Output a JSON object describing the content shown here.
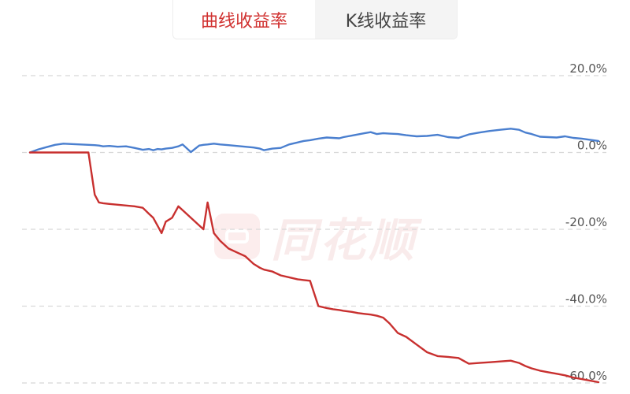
{
  "tabs": [
    {
      "label": "曲线收益率",
      "active": true
    },
    {
      "label": "K线收益率",
      "active": false
    }
  ],
  "watermark": {
    "text": "同花顺"
  },
  "colors": {
    "series_a": "#4a7fcf",
    "series_b": "#c8302f",
    "grid": "#d8d8d8",
    "tick": "#555555"
  },
  "chart_data": {
    "type": "line",
    "title": "",
    "xlabel": "",
    "ylabel": "",
    "ylim": [
      -60,
      20
    ],
    "yticks": [
      20,
      0,
      -20,
      -40,
      -60
    ],
    "ytick_labels": [
      "20.0%",
      "0.0%",
      "-20.0%",
      "-40.0%",
      "-60.0%"
    ],
    "grid": true,
    "x": [
      0,
      4,
      8,
      12,
      16,
      20,
      24,
      28,
      31,
      33,
      35,
      38,
      42,
      46,
      50,
      54,
      57,
      59,
      61,
      63,
      65,
      68,
      71,
      73,
      77,
      81,
      83,
      85,
      88,
      91,
      95,
      99,
      103,
      107,
      110,
      112,
      116,
      120,
      124,
      128,
      131,
      134,
      138,
      142,
      145,
      148,
      150,
      154,
      157,
      160,
      163,
      166,
      169,
      172,
      176,
      180,
      185,
      190,
      195,
      200,
      205,
      210,
      215,
      220,
      225,
      230,
      234,
      237,
      240,
      244,
      248,
      252,
      256,
      260,
      264,
      268,
      272
    ],
    "series": [
      {
        "values": [
          0,
          0.8,
          1.4,
          2.0,
          2.3,
          2.2,
          2.1,
          2.0,
          1.9,
          1.8,
          1.6,
          1.7,
          1.5,
          1.6,
          1.2,
          0.7,
          0.9,
          0.6,
          0.9,
          0.8,
          1.0,
          1.2,
          1.6,
          2.1,
          0.1,
          1.8,
          2.0,
          2.1,
          2.3,
          2.1,
          1.9,
          1.7,
          1.5,
          1.3,
          1.0,
          0.6,
          1.0,
          1.2,
          2.1,
          2.6,
          3.0,
          3.2,
          3.6,
          3.9,
          3.8,
          3.7,
          4.0,
          4.4,
          4.7,
          5.0,
          5.3,
          4.8,
          5.0,
          4.9,
          4.8,
          4.5,
          4.2,
          4.3,
          4.6,
          4.0,
          3.8,
          4.7,
          5.2,
          5.6,
          5.9,
          6.2,
          5.9,
          5.2,
          4.8,
          4.1,
          4.0,
          3.9,
          4.2,
          3.8,
          3.6,
          3.3,
          3.0
        ]
      },
      {
        "values": [
          0,
          0,
          0,
          0,
          0,
          0,
          0,
          0,
          -11,
          -13,
          -13.2,
          -13.4,
          -13.6,
          -13.8,
          -14.0,
          -14.4,
          -16,
          -17,
          -19,
          -21,
          -18,
          -17,
          -14,
          -15,
          -17,
          -19,
          -20,
          -13,
          -21,
          -23,
          -25,
          -26,
          -27,
          -29,
          -30,
          -30.5,
          -31,
          -32,
          -32.5,
          -33,
          -33.2,
          -33.4,
          -40,
          -40.5,
          -40.8,
          -41,
          -41.2,
          -41.5,
          -41.8,
          -42.0,
          -42.2,
          -42.5,
          -43,
          -44.5,
          -47,
          -48,
          -50,
          -52,
          -53,
          -53.2,
          -53.5,
          -55,
          -54.8,
          -54.6,
          -54.4,
          -54.2,
          -54.8,
          -55.6,
          -56.2,
          -56.8,
          -57.2,
          -57.6,
          -58.0,
          -58.6,
          -59.0,
          -59.4,
          -59.8
        ]
      }
    ]
  }
}
